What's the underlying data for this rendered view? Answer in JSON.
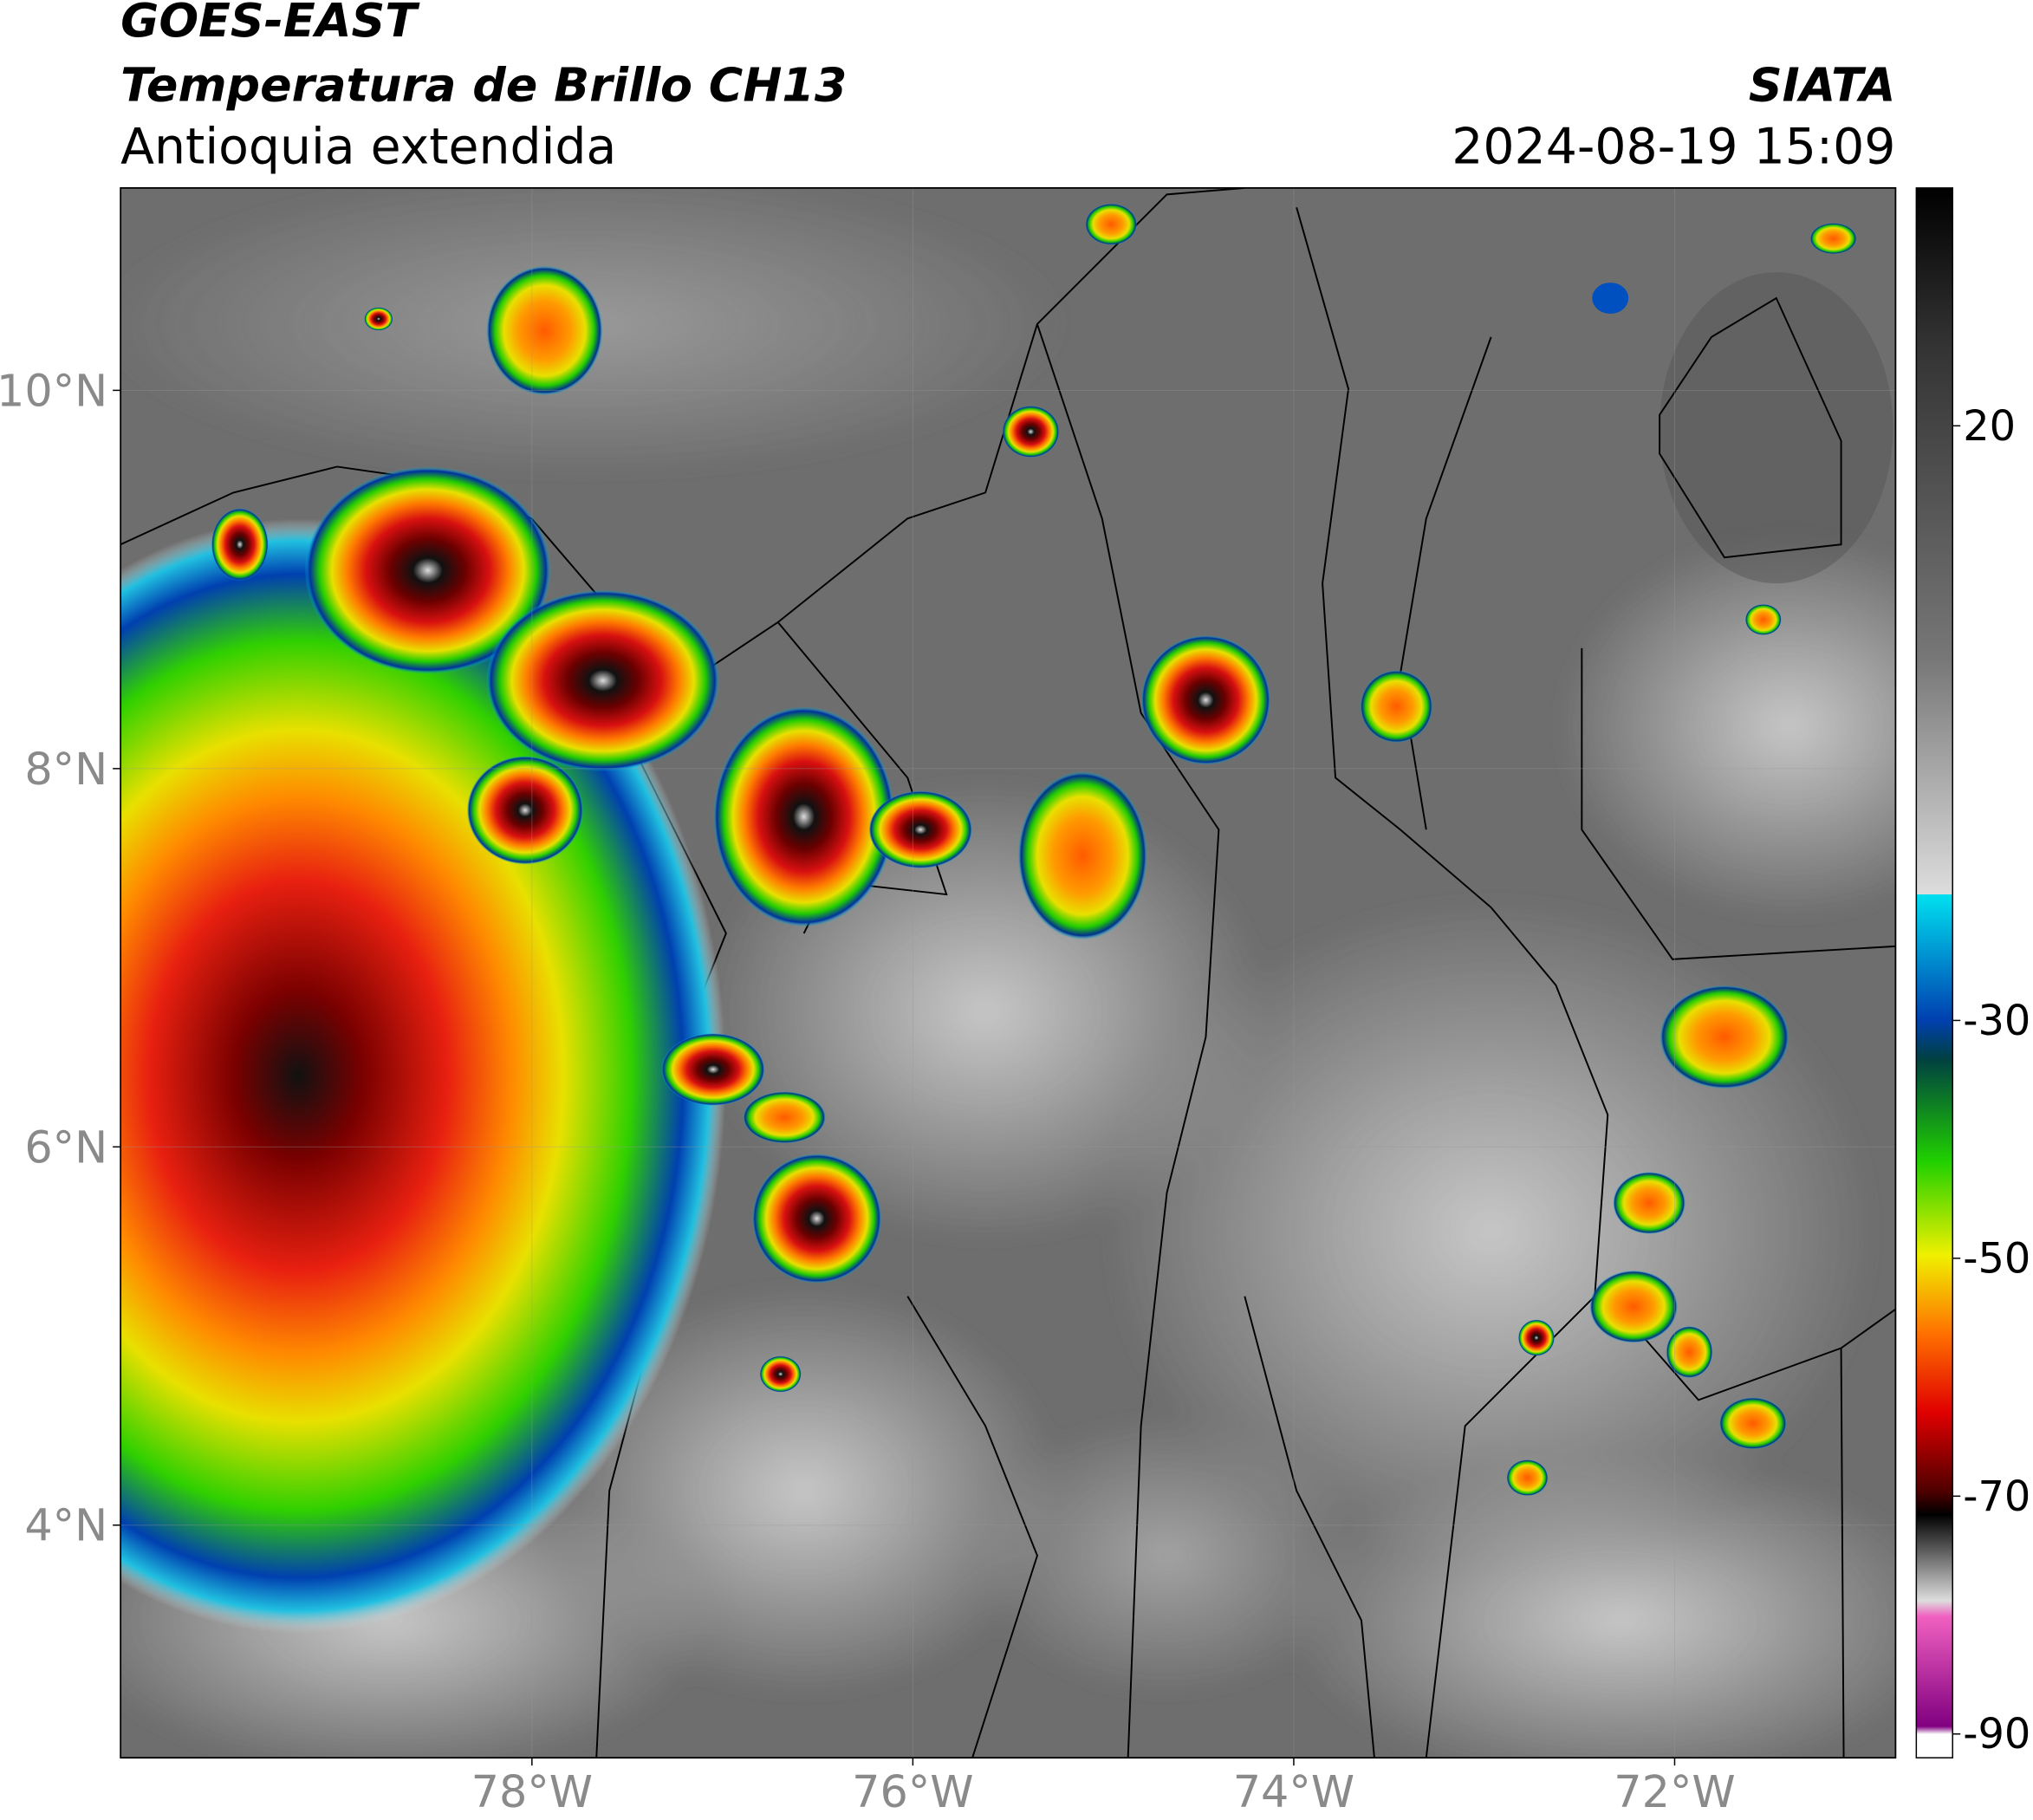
{
  "header": {
    "title": "GOES-EAST",
    "subtitle": "Temperatura de Brillo CH13",
    "region": "Antioquia extendida",
    "source": "SIATA",
    "datetime": "2024-08-19 15:09"
  },
  "map": {
    "xlim": [
      -80.16,
      -70.84
    ],
    "ylim": [
      2.77,
      11.07
    ],
    "xticks": [
      {
        "value": -78,
        "label": "78°W"
      },
      {
        "value": -76,
        "label": "76°W"
      },
      {
        "value": -74,
        "label": "74°W"
      },
      {
        "value": -72,
        "label": "72°W"
      }
    ],
    "yticks": [
      {
        "value": 10,
        "label": "10°N"
      },
      {
        "value": 8,
        "label": "8°N"
      },
      {
        "value": 6,
        "label": "6°N"
      },
      {
        "value": 4,
        "label": "4°N"
      }
    ]
  },
  "colorbar": {
    "lim": [
      -92,
      40
    ],
    "ticks": [
      20,
      -30,
      -50,
      -70,
      -90
    ]
  }
}
